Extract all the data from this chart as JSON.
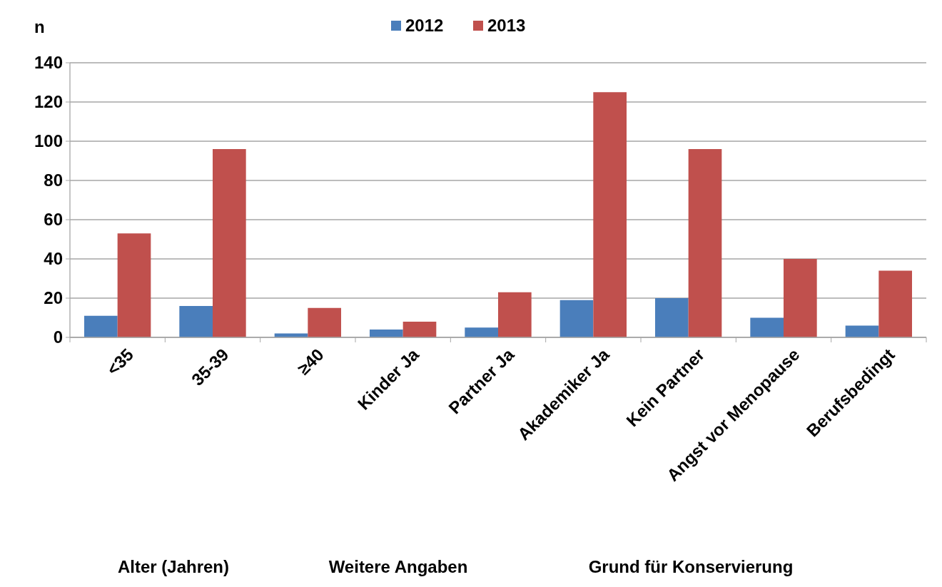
{
  "chart_data": {
    "type": "bar",
    "ylabel": "n",
    "categories": [
      "<35",
      "35-39",
      "≥40",
      "Kinder Ja",
      "Partner Ja",
      "Akademiker Ja",
      "Kein Partner",
      "Angst vor Menopause",
      "Berufsbedingt"
    ],
    "series": [
      {
        "name": "2012",
        "color": "#4a7ebb",
        "values": [
          11,
          16,
          2,
          4,
          5,
          19,
          20,
          10,
          6
        ]
      },
      {
        "name": "2013",
        "color": "#c0504d",
        "values": [
          53,
          96,
          15,
          8,
          23,
          125,
          96,
          40,
          34
        ]
      }
    ],
    "ylim": [
      0,
      140
    ],
    "yticks": [
      0,
      20,
      40,
      60,
      80,
      100,
      120,
      140
    ],
    "grid": "y",
    "legend": "top",
    "annotations": [
      "Alter (Jahren)",
      "Weitere Angaben",
      "Grund für Konservierung"
    ]
  }
}
